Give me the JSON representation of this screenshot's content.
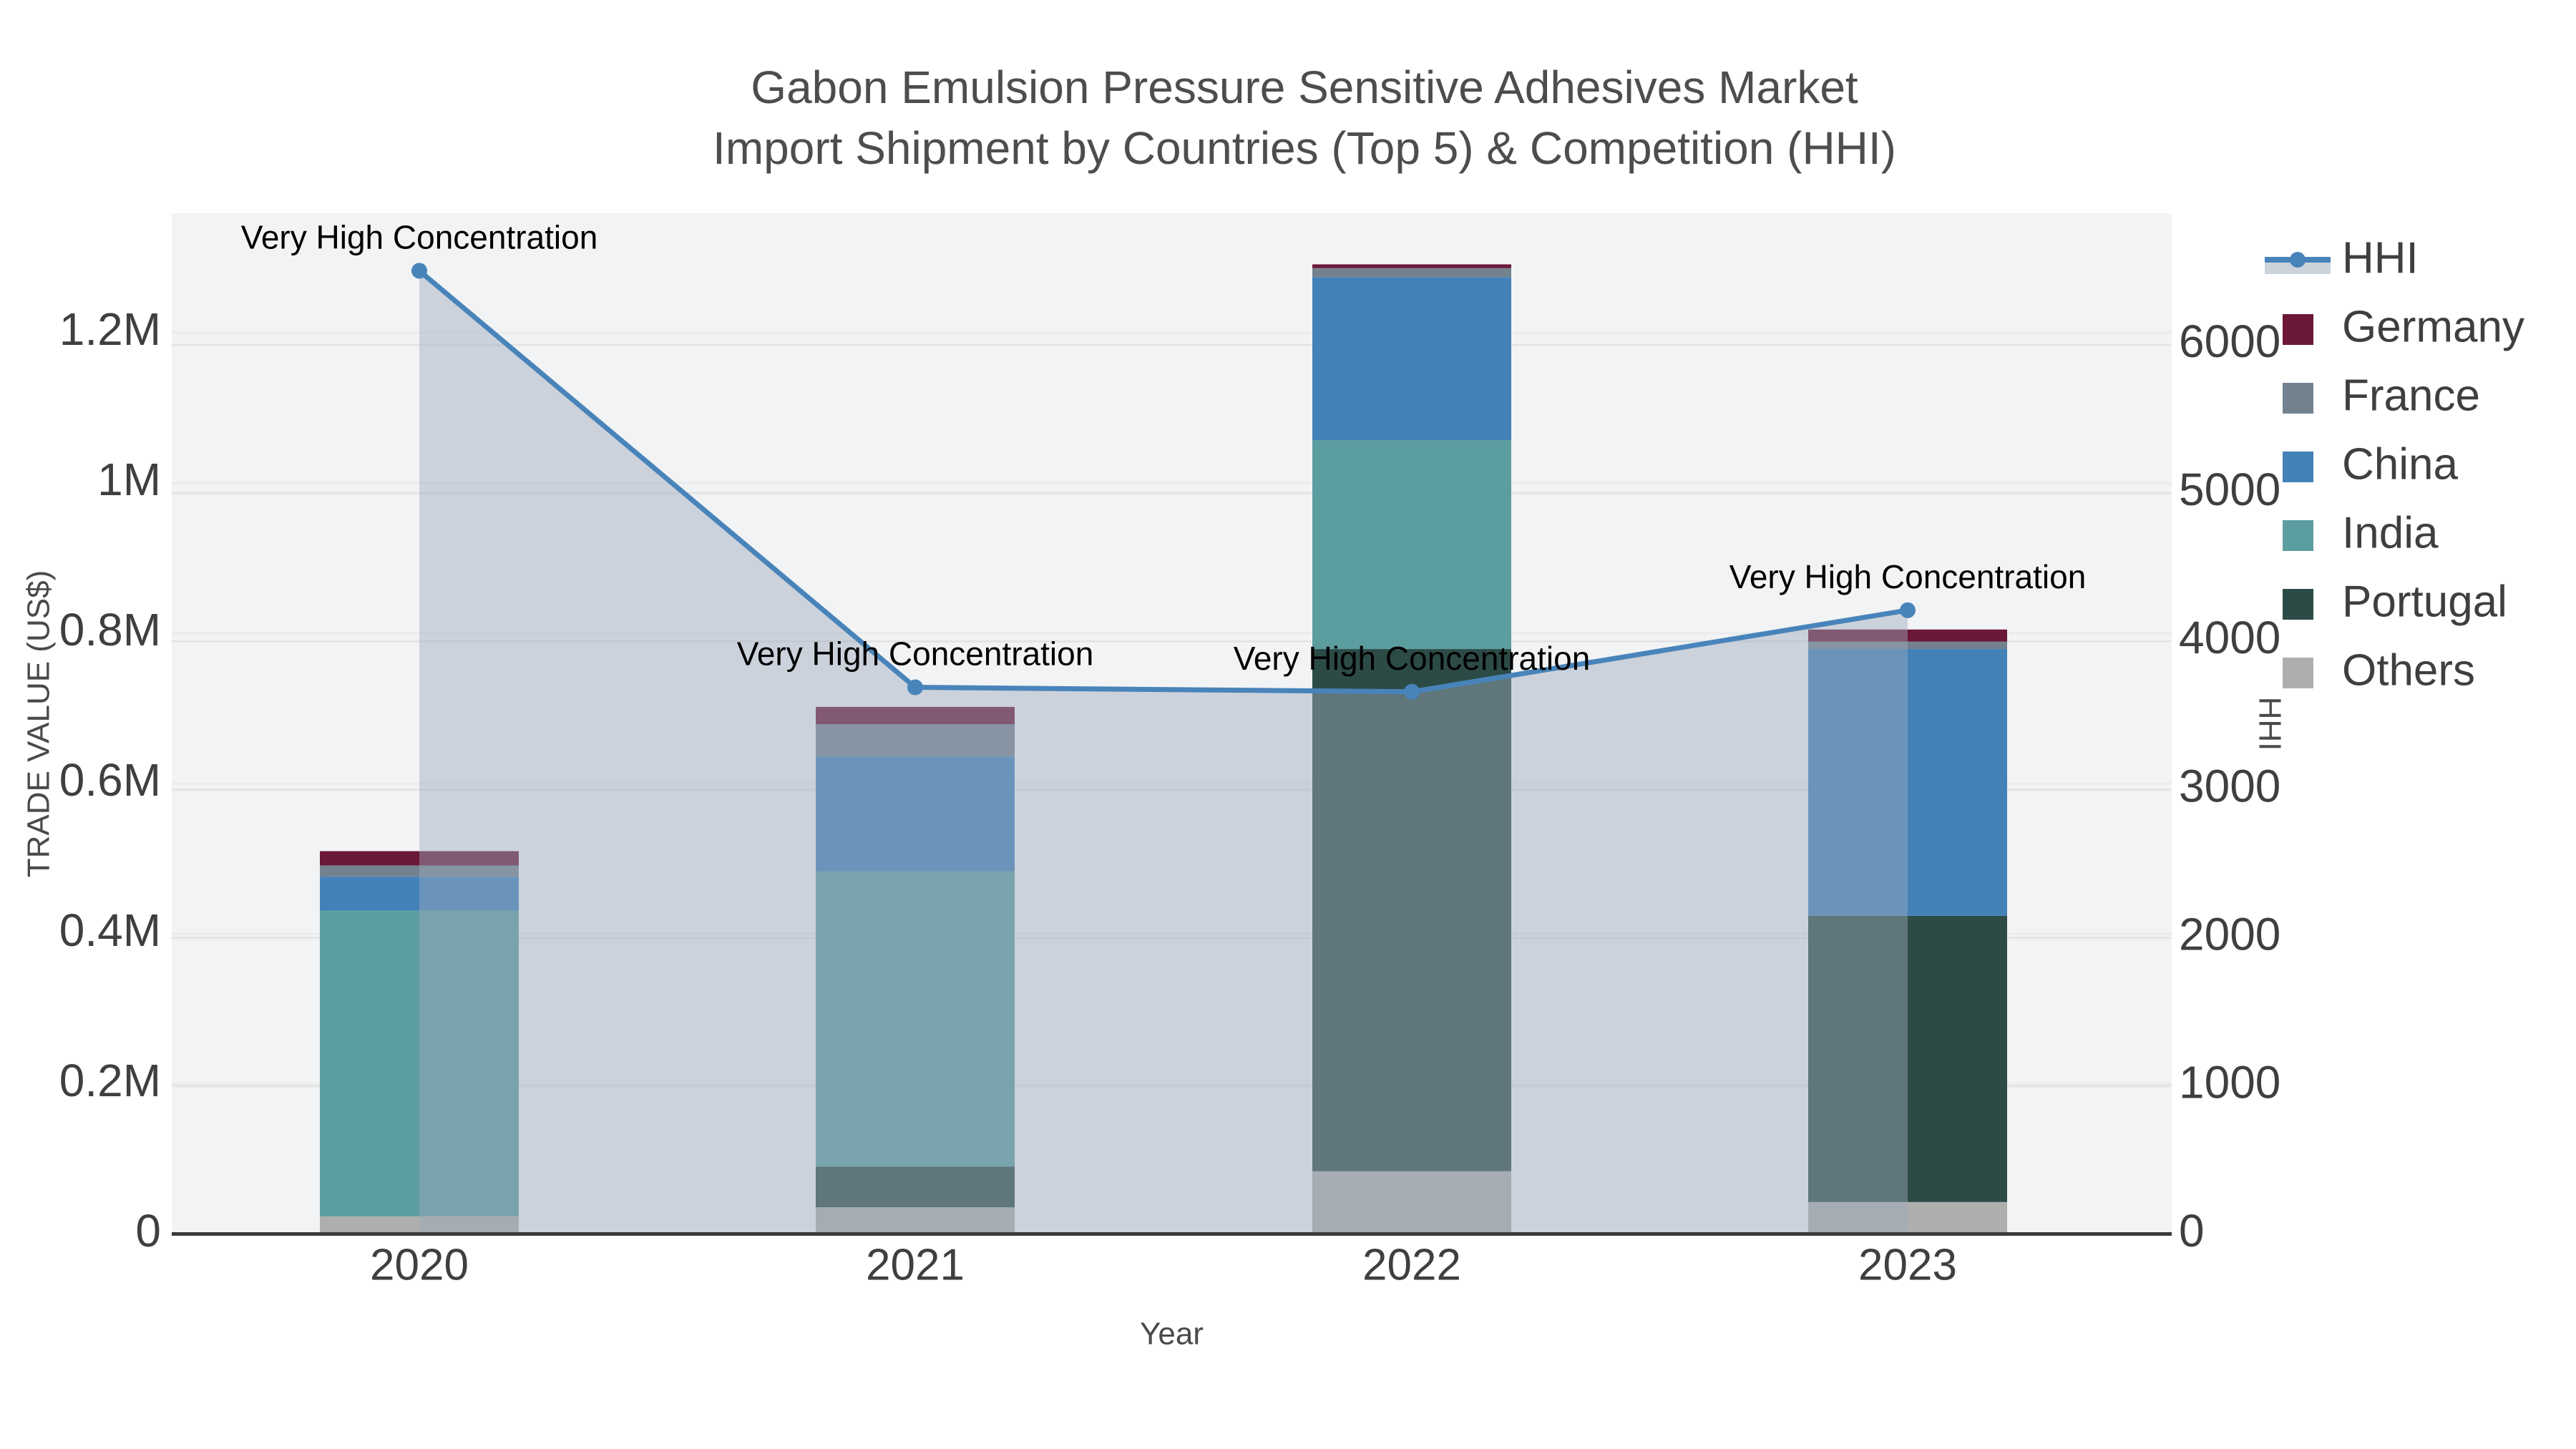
{
  "title": {
    "line1": "Gabon Emulsion Pressure Sensitive Adhesives Market",
    "line2": "Import Shipment by Countries (Top 5) & Competition (HHI)"
  },
  "colors": {
    "page_bg": "#ffffff",
    "plot_bg": "#f2f3f4",
    "grid_left": "#eaebed",
    "grid_right": "#e3e4e6",
    "axis_line": "#3b3b3b",
    "tick_text": "#3f3f3f",
    "axis_title_text": "#4a4a4a",
    "title_text": "#4d4d4d",
    "annotation_text": "#000000",
    "hhi_line": "#4884BA",
    "hhi_fill": "rgba(158,170,188,0.45)",
    "legend_fill_band": "#cdd3da"
  },
  "chart_data": {
    "type": "combo_stacked_bar_line",
    "categories": [
      "2020",
      "2021",
      "2022",
      "2023"
    ],
    "bar_series_bottom_to_top": [
      {
        "name": "Others",
        "color": "#AEAEAC",
        "values": [
          24000,
          36000,
          84000,
          43000
        ]
      },
      {
        "name": "Portugal",
        "color": "#2D4B46",
        "values": [
          0,
          54000,
          695000,
          381000
        ]
      },
      {
        "name": "India",
        "color": "#5C9DA0",
        "values": [
          407000,
          393000,
          278000,
          0
        ]
      },
      {
        "name": "China",
        "color": "#4381B9",
        "values": [
          45000,
          153000,
          217000,
          355000
        ]
      },
      {
        "name": "France",
        "color": "#74828F",
        "values": [
          15000,
          43000,
          12000,
          10000
        ]
      },
      {
        "name": "Germany",
        "color": "#6B1738",
        "values": [
          19000,
          23000,
          5000,
          16000
        ]
      }
    ],
    "bar_totals": [
      510000,
      702000,
      1291000,
      805000
    ],
    "line_series": {
      "name": "HHI",
      "values": [
        6500,
        3690,
        3660,
        4210
      ]
    },
    "annotations": [
      {
        "category": "2020",
        "text": "Very High Concentration"
      },
      {
        "category": "2021",
        "text": "Very High Concentration"
      },
      {
        "category": "2022",
        "text": "Very High Concentration"
      },
      {
        "category": "2023",
        "text": "Very High Concentration"
      }
    ],
    "x_axis": {
      "title": "Year",
      "tick_labels": [
        "2020",
        "2021",
        "2022",
        "2023"
      ]
    },
    "y_left_axis": {
      "title": "TRADE VALUE (US$)",
      "tick_values": [
        0,
        200000,
        400000,
        600000,
        800000,
        1000000,
        1200000
      ],
      "tick_labels": [
        "0",
        "0.2M",
        "0.4M",
        "0.6M",
        "0.8M",
        "1M",
        "1.2M"
      ],
      "range": [
        0,
        1360000
      ],
      "grid": true
    },
    "y_right_axis": {
      "title": "HHI",
      "tick_values": [
        0,
        1000,
        2000,
        3000,
        4000,
        5000,
        6000
      ],
      "tick_labels": [
        "0",
        "1000",
        "2000",
        "3000",
        "4000",
        "5000",
        "6000"
      ],
      "range": [
        0,
        6890
      ],
      "grid": true
    },
    "legend_order": [
      "HHI",
      "Germany",
      "France",
      "China",
      "India",
      "Portugal",
      "Others"
    ],
    "legend_position": "right"
  }
}
